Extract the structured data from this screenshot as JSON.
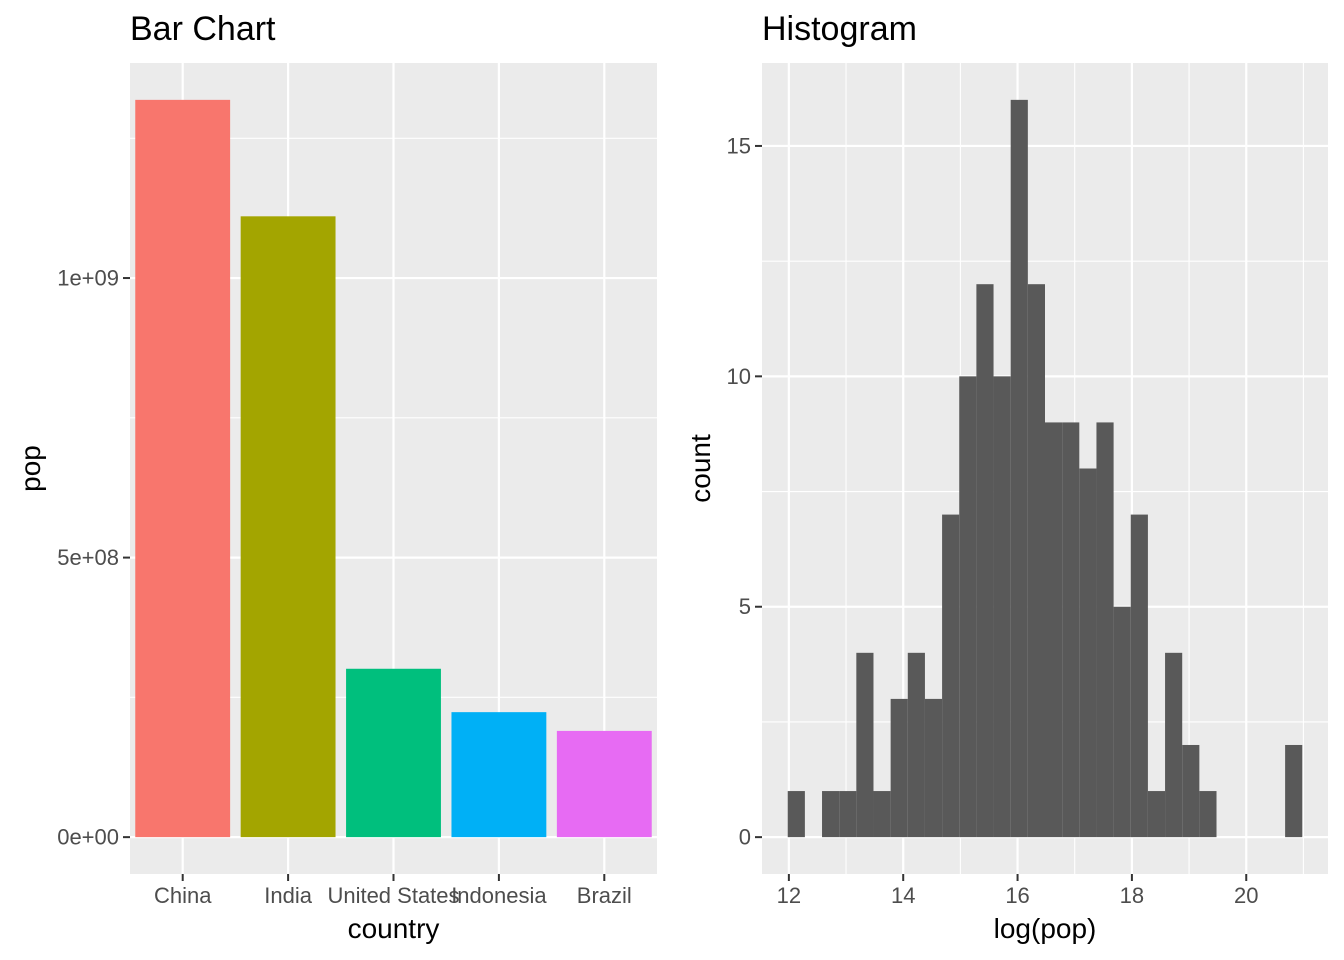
{
  "chart_data": [
    {
      "type": "bar",
      "title": "Bar Chart",
      "xlabel": "country",
      "ylabel": "pop",
      "categories": [
        "China",
        "India",
        "United States",
        "Indonesia",
        "Brazil"
      ],
      "values": [
        1318683096,
        1110396331,
        301139947,
        223547000,
        190010647
      ],
      "colors": [
        "#F8766D",
        "#A3A500",
        "#00BF7D",
        "#00B0F6",
        "#E76BF3"
      ],
      "yticks": [
        0,
        500000000,
        1000000000
      ],
      "ytick_labels": [
        "0e+00",
        "5e+08",
        "1e+09"
      ],
      "ylim": [
        -65934155,
        1384617251
      ],
      "grid": true,
      "legend": "none"
    },
    {
      "type": "bar",
      "title": "Histogram",
      "xlabel": "log(pop)",
      "ylabel": "count",
      "bar_color": "#595959",
      "bins": [
        {
          "x0": 11.98,
          "x1": 12.28,
          "count": 1
        },
        {
          "x0": 12.28,
          "x1": 12.58,
          "count": 0
        },
        {
          "x0": 12.58,
          "x1": 12.88,
          "count": 1
        },
        {
          "x0": 12.88,
          "x1": 13.18,
          "count": 1
        },
        {
          "x0": 13.18,
          "x1": 13.48,
          "count": 4
        },
        {
          "x0": 13.48,
          "x1": 13.78,
          "count": 1
        },
        {
          "x0": 13.78,
          "x1": 14.08,
          "count": 3
        },
        {
          "x0": 14.08,
          "x1": 14.38,
          "count": 4
        },
        {
          "x0": 14.38,
          "x1": 14.68,
          "count": 3
        },
        {
          "x0": 14.68,
          "x1": 14.98,
          "count": 7
        },
        {
          "x0": 14.98,
          "x1": 15.28,
          "count": 10
        },
        {
          "x0": 15.28,
          "x1": 15.58,
          "count": 12
        },
        {
          "x0": 15.58,
          "x1": 15.88,
          "count": 10
        },
        {
          "x0": 15.88,
          "x1": 16.18,
          "count": 16
        },
        {
          "x0": 16.18,
          "x1": 16.48,
          "count": 12
        },
        {
          "x0": 16.48,
          "x1": 16.78,
          "count": 9
        },
        {
          "x0": 16.78,
          "x1": 17.08,
          "count": 9
        },
        {
          "x0": 17.08,
          "x1": 17.38,
          "count": 8
        },
        {
          "x0": 17.38,
          "x1": 17.68,
          "count": 9
        },
        {
          "x0": 17.68,
          "x1": 17.98,
          "count": 5
        },
        {
          "x0": 17.98,
          "x1": 18.28,
          "count": 7
        },
        {
          "x0": 18.28,
          "x1": 18.58,
          "count": 1
        },
        {
          "x0": 18.58,
          "x1": 18.88,
          "count": 4
        },
        {
          "x0": 18.88,
          "x1": 19.18,
          "count": 2
        },
        {
          "x0": 19.18,
          "x1": 19.48,
          "count": 1
        },
        {
          "x0": 19.48,
          "x1": 19.78,
          "count": 0
        },
        {
          "x0": 19.78,
          "x1": 20.08,
          "count": 0
        },
        {
          "x0": 20.08,
          "x1": 20.38,
          "count": 0
        },
        {
          "x0": 20.38,
          "x1": 20.68,
          "count": 0
        },
        {
          "x0": 20.68,
          "x1": 20.98,
          "count": 2
        }
      ],
      "xticks": [
        12,
        14,
        16,
        18,
        20
      ],
      "xtick_labels": [
        "12",
        "14",
        "16",
        "18",
        "20"
      ],
      "yticks": [
        0,
        5,
        10,
        15
      ],
      "ytick_labels": [
        "0",
        "5",
        "10",
        "15"
      ],
      "xlim": [
        11.53,
        21.43
      ],
      "ylim": [
        -0.8,
        16.8
      ],
      "grid": true,
      "legend": "none"
    }
  ]
}
